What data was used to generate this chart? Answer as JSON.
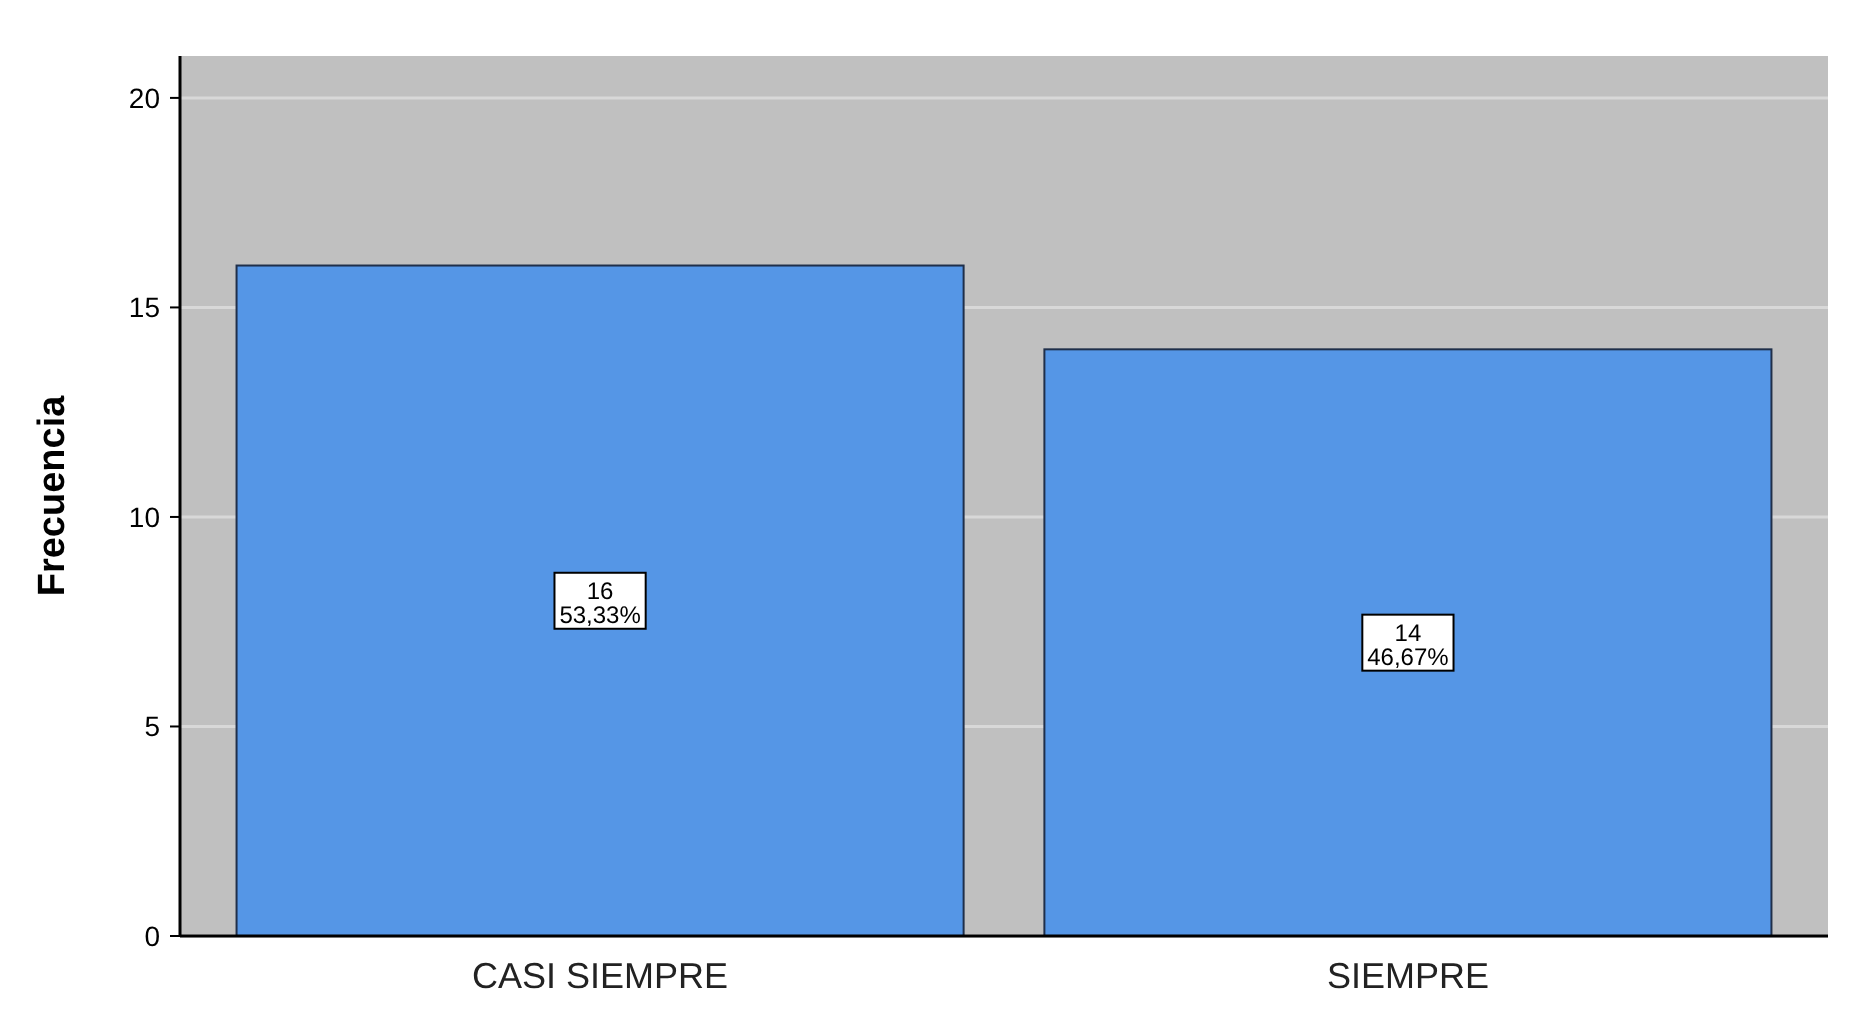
{
  "chart_data": {
    "type": "bar",
    "ylabel": "Frecuencia",
    "categories": [
      "CASI SIEMPRE",
      "SIEMPRE"
    ],
    "values": [
      16,
      14
    ],
    "color": "#5596e6",
    "value_labels": [
      "16\n53,33%",
      "14\n46,67%"
    ],
    "ylim": [
      0,
      21
    ],
    "yticks": [
      0,
      5,
      10,
      15,
      20
    ],
    "grid": "y"
  }
}
